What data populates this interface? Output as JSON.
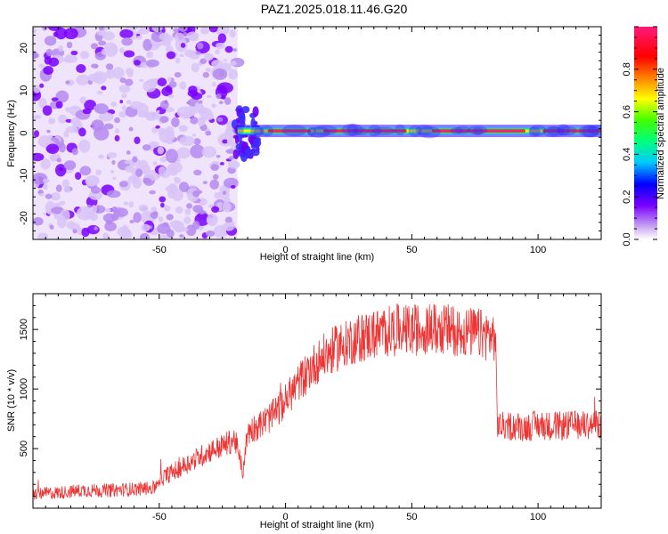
{
  "title": "PAZ1.2025.018.11.46.G20",
  "chart_data": [
    {
      "type": "heatmap",
      "name": "spectrogram",
      "xlabel": "Height of straight line (km)",
      "ylabel": "Frequency (Hz)",
      "xlim": [
        -100,
        125
      ],
      "ylim": [
        -25,
        25
      ],
      "x_ticks": [
        "-50",
        "0",
        "50",
        "100"
      ],
      "y_ticks": [
        "-20",
        "-10",
        "0",
        "10",
        "20"
      ],
      "colorbar": {
        "label": "Normalized spectral amplitude",
        "range": [
          0,
          1
        ],
        "ticks": [
          "0.0",
          "0.2",
          "0.4",
          "0.6",
          "0.8"
        ]
      },
      "features": {
        "noise_region_x": [
          -100,
          -19
        ],
        "signal_line_x": [
          -19,
          125
        ],
        "signal_line_frequency": 0.5,
        "bright_segments_x": [
          [
            -7,
            10
          ],
          [
            15,
            48
          ],
          [
            58,
            95
          ],
          [
            102,
            125
          ]
        ]
      },
      "grid": false
    },
    {
      "type": "line",
      "name": "snr",
      "xlabel": "Height of straight line (km)",
      "ylabel": "SNR (10 * v/v)",
      "xlim": [
        -100,
        125
      ],
      "ylim": [
        0,
        1800
      ],
      "x_ticks": [
        "-50",
        "0",
        "50",
        "100"
      ],
      "y_ticks": [
        "500",
        "1000",
        "1500"
      ],
      "color": "#ee3333",
      "series": [
        {
          "x": [
            -100,
            -90,
            -80,
            -70,
            -60,
            -52,
            -50,
            -45,
            -40,
            -35,
            -30,
            -25,
            -20,
            -17,
            -15,
            -12,
            -10,
            -5,
            0,
            5,
            10,
            15,
            20,
            25,
            30,
            35,
            40,
            45,
            50,
            55,
            60,
            65,
            70,
            75,
            80,
            83,
            84,
            85,
            90,
            95,
            100,
            105,
            110,
            115,
            120,
            125
          ],
          "values": [
            120,
            130,
            150,
            150,
            160,
            170,
            240,
            300,
            360,
            420,
            480,
            520,
            580,
            300,
            640,
            680,
            700,
            780,
            900,
            1050,
            1180,
            1270,
            1340,
            1400,
            1430,
            1460,
            1480,
            1500,
            1490,
            1510,
            1500,
            1500,
            1480,
            1470,
            1450,
            1440,
            700,
            690,
            690,
            680,
            700,
            690,
            690,
            700,
            700,
            710
          ]
        }
      ],
      "grid": false
    }
  ]
}
